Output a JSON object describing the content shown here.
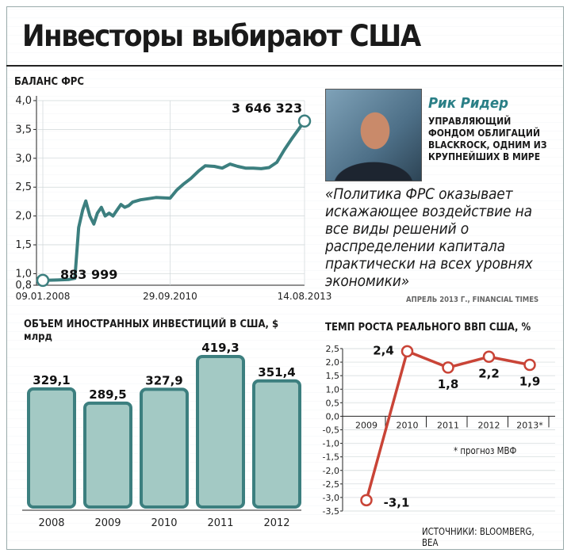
{
  "title": "Инвесторы выбирают США",
  "person": {
    "name": "Рик Ридер",
    "role": "УПРАВЛЯЮЩИЙ ФОНДОМ ОБЛИГАЦИЙ BLACKROCK, ОДНИМ ИЗ КРУПНЕЙШИХ В МИРЕ",
    "quote": "«Политика ФРС оказывает искажающее воздействие на все виды решений о распределении капитала практически на всех уровнях экономики»",
    "quote_source": "АПРЕЛЬ 2013 Г., FINANCIAL TIMES"
  },
  "sources": "ИСТОЧНИКИ: BLOOMBERG, BEA",
  "colors": {
    "accent": "#3c7f7f",
    "bar": "#a3c9c4",
    "bar_edge": "#3c7f7f",
    "gdp_line": "#c94437"
  },
  "chart_data": [
    {
      "type": "line",
      "title": "БАЛАНС ФРС",
      "ylim": [
        0.8,
        4.0
      ],
      "yticks": [
        "0,8",
        "1,0",
        "1,5",
        "2,0",
        "2,5",
        "3,0",
        "3,5",
        "4,0"
      ],
      "ytick_values": [
        0.8,
        1.0,
        1.5,
        2.0,
        2.5,
        3.0,
        3.5,
        4.0
      ],
      "xticks": [
        "09.01.2008",
        "29.09.2010",
        "14.08.2013"
      ],
      "xlim": [
        "2008-01-09",
        "2013-08-14"
      ],
      "grid": true,
      "annotations": {
        "start": "883 999",
        "end": "3 646 323"
      },
      "x": [
        "2008-01-09",
        "2008-05-01",
        "2008-08-01",
        "2008-09-15",
        "2008-10-15",
        "2008-11-15",
        "2008-12-10",
        "2009-01-10",
        "2009-02-10",
        "2009-03-10",
        "2009-04-10",
        "2009-05-10",
        "2009-06-10",
        "2009-07-10",
        "2009-08-10",
        "2009-09-10",
        "2009-10-10",
        "2009-11-10",
        "2009-12-10",
        "2010-02-10",
        "2010-04-10",
        "2010-06-10",
        "2010-09-29",
        "2010-11-20",
        "2011-01-10",
        "2011-03-10",
        "2011-05-10",
        "2011-06-30",
        "2011-09-10",
        "2011-11-10",
        "2012-01-10",
        "2012-03-10",
        "2012-05-10",
        "2012-07-10",
        "2012-09-10",
        "2012-11-10",
        "2013-01-10",
        "2013-03-10",
        "2013-05-10",
        "2013-08-14"
      ],
      "values": [
        0.884,
        0.89,
        0.9,
        0.92,
        1.8,
        2.1,
        2.26,
        2.0,
        1.86,
        2.05,
        2.15,
        2.0,
        2.05,
        2.0,
        2.1,
        2.2,
        2.15,
        2.18,
        2.24,
        2.28,
        2.3,
        2.32,
        2.31,
        2.45,
        2.55,
        2.65,
        2.78,
        2.87,
        2.86,
        2.83,
        2.9,
        2.86,
        2.83,
        2.83,
        2.82,
        2.84,
        2.93,
        3.15,
        3.35,
        3.646
      ]
    },
    {
      "type": "bar",
      "title": "ОБЪЕМ ИНОСТРАННЫХ ИНВЕСТИЦИЙ В США, $ млрд",
      "categories": [
        "2008",
        "2009",
        "2010",
        "2011",
        "2012"
      ],
      "values": [
        329.1,
        289.5,
        327.9,
        419.3,
        351.4
      ],
      "labels": [
        "329,1",
        "289,5",
        "327,9",
        "419,3",
        "351,4"
      ],
      "ylim": [
        0,
        419.3
      ]
    },
    {
      "type": "line",
      "title": "ТЕМП РОСТА РЕАЛЬНОГО ВВП США, %",
      "categories": [
        "2009",
        "2010",
        "2011",
        "2012",
        "2013*"
      ],
      "values": [
        -3.1,
        2.4,
        1.8,
        2.2,
        1.9
      ],
      "labels": [
        "-3,1",
        "2,4",
        "1,8",
        "2,2",
        "1,9"
      ],
      "ylim": [
        -3.5,
        2.5
      ],
      "yticks": [
        "2,5",
        "2,0",
        "1,5",
        "1,0",
        "0,5",
        "0,0",
        "-0,5",
        "-1,0",
        "-1,5",
        "-2,0",
        "-2,5",
        "-3,0",
        "-3,5"
      ],
      "ytick_values": [
        2.5,
        2.0,
        1.5,
        1.0,
        0.5,
        0.0,
        -0.5,
        -1.0,
        -1.5,
        -2.0,
        -2.5,
        -3.0,
        -3.5
      ],
      "note": "* прогноз МВФ"
    }
  ]
}
